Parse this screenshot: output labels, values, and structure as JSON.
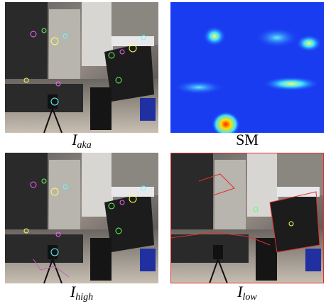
{
  "panels": [
    {
      "label": "I",
      "subscript": "aka"
    },
    {
      "label": "SM"
    },
    {
      "label": "I",
      "subscript": "high"
    },
    {
      "label": "I",
      "subscript": "low"
    }
  ]
}
